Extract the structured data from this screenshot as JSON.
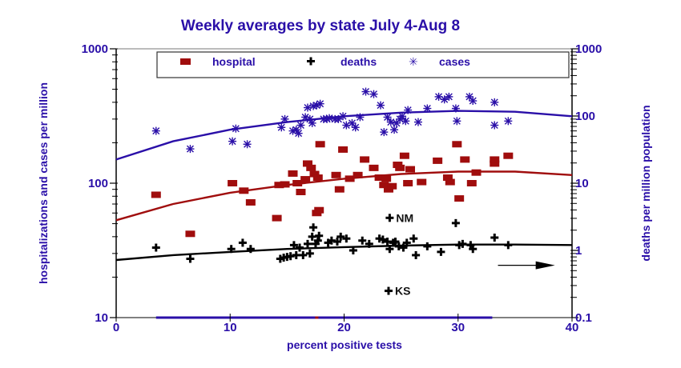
{
  "chart_data": {
    "type": "scatter",
    "title": "Weekly averages by state July 4-Aug 8",
    "xlabel": "percent positive tests",
    "ylabel_left": "hospitalizations and cases per million",
    "ylabel_right": "deaths per million population",
    "xlim": [
      0,
      40
    ],
    "ylim_left": [
      10,
      1000
    ],
    "ylim_right": [
      0.1,
      1000
    ],
    "yscale": "log",
    "x_ticks": [
      "0",
      "10",
      "20",
      "30",
      "40"
    ],
    "y_ticks_left": [
      "10",
      "100",
      "1000"
    ],
    "y_ticks_right": [
      "0.1",
      "1",
      "10",
      "100",
      "1000"
    ],
    "legend": {
      "position": "top-center",
      "entries": [
        {
          "name": "hospital",
          "marker": "square",
          "color": "#a00d0d"
        },
        {
          "name": "deaths",
          "marker": "plus",
          "color": "#000000"
        },
        {
          "name": "cases",
          "marker": "asterisk",
          "color": "#2a0fa8"
        }
      ]
    },
    "series": [
      {
        "name": "cases",
        "axis": "left",
        "color": "#2a0fa8",
        "points": [
          [
            3.5,
            245
          ],
          [
            6.5,
            180
          ],
          [
            10.2,
            205
          ],
          [
            11.5,
            195
          ],
          [
            10.5,
            255
          ],
          [
            14.5,
            260
          ],
          [
            14.8,
            300
          ],
          [
            15.5,
            245
          ],
          [
            15.8,
            250
          ],
          [
            16.2,
            270
          ],
          [
            16.6,
            310
          ],
          [
            16.8,
            365
          ],
          [
            17,
            300
          ],
          [
            17.3,
            375
          ],
          [
            17.6,
            380
          ],
          [
            17.9,
            390
          ],
          [
            17.2,
            280
          ],
          [
            18.2,
            300
          ],
          [
            18.7,
            305
          ],
          [
            19.2,
            300
          ],
          [
            19.5,
            300
          ],
          [
            19.9,
            315
          ],
          [
            20.2,
            270
          ],
          [
            20.7,
            280
          ],
          [
            21,
            260
          ],
          [
            21.4,
            310
          ],
          [
            21.9,
            480
          ],
          [
            22.6,
            460
          ],
          [
            23.2,
            380
          ],
          [
            23.8,
            310
          ],
          [
            24.1,
            285
          ],
          [
            24.4,
            250
          ],
          [
            24.6,
            280
          ],
          [
            24.9,
            300
          ],
          [
            25.1,
            315
          ],
          [
            25.4,
            290
          ],
          [
            25.6,
            350
          ],
          [
            26.5,
            285
          ],
          [
            27.3,
            360
          ],
          [
            28.3,
            440
          ],
          [
            28.8,
            420
          ],
          [
            29.2,
            440
          ],
          [
            29.8,
            360
          ],
          [
            29.9,
            290
          ],
          [
            31,
            440
          ],
          [
            31.3,
            410
          ],
          [
            33.2,
            270
          ],
          [
            33.2,
            400
          ],
          [
            34.4,
            290
          ],
          [
            18.5,
            300
          ],
          [
            16,
            235
          ],
          [
            23.5,
            240
          ]
        ]
      },
      {
        "name": "hospital",
        "axis": "left",
        "color": "#a00d0d",
        "points": [
          [
            3.5,
            82
          ],
          [
            6.5,
            42
          ],
          [
            10.2,
            100
          ],
          [
            11.2,
            88
          ],
          [
            11.8,
            72
          ],
          [
            14.1,
            55
          ],
          [
            14.3,
            97
          ],
          [
            14.8,
            98
          ],
          [
            15.5,
            118
          ],
          [
            15.9,
            100
          ],
          [
            16.2,
            86
          ],
          [
            16.6,
            107
          ],
          [
            16.8,
            140
          ],
          [
            17.1,
            130
          ],
          [
            17.4,
            117
          ],
          [
            17.7,
            110
          ],
          [
            17.6,
            60
          ],
          [
            17.9,
            195
          ],
          [
            17.8,
            63
          ],
          [
            19.3,
            115
          ],
          [
            19.6,
            90
          ],
          [
            19.9,
            178
          ],
          [
            20.5,
            108
          ],
          [
            21.2,
            115
          ],
          [
            21.8,
            150
          ],
          [
            22.6,
            130
          ],
          [
            23.1,
            110
          ],
          [
            23.5,
            97
          ],
          [
            23.7,
            108
          ],
          [
            23.9,
            90
          ],
          [
            24.2,
            95
          ],
          [
            24.7,
            137
          ],
          [
            24.9,
            130
          ],
          [
            25.3,
            160
          ],
          [
            25.6,
            100
          ],
          [
            25.8,
            127
          ],
          [
            26.8,
            102
          ],
          [
            28.2,
            147
          ],
          [
            29.1,
            110
          ],
          [
            29.3,
            102
          ],
          [
            29.9,
            195
          ],
          [
            30.1,
            77
          ],
          [
            30.6,
            150
          ],
          [
            31.2,
            100
          ],
          [
            31.6,
            120
          ],
          [
            33.2,
            140
          ],
          [
            33.2,
            150
          ],
          [
            34.4,
            160
          ]
        ]
      },
      {
        "name": "deaths",
        "axis": "right",
        "color": "#000000",
        "points": [
          [
            3.5,
            1.1
          ],
          [
            6.5,
            0.75
          ],
          [
            10.1,
            1.05
          ],
          [
            11.1,
            1.3
          ],
          [
            11.8,
            1.05
          ],
          [
            14.4,
            0.75
          ],
          [
            14.7,
            0.78
          ],
          [
            15,
            0.8
          ],
          [
            15.3,
            0.82
          ],
          [
            15.6,
            1.2
          ],
          [
            15.8,
            0.85
          ],
          [
            16.1,
            1.1
          ],
          [
            16.4,
            0.85
          ],
          [
            16.8,
            1.25
          ],
          [
            17,
            0.9
          ],
          [
            17.2,
            1.6
          ],
          [
            17.3,
            2.2
          ],
          [
            17.5,
            1.25
          ],
          [
            17.7,
            1.4
          ],
          [
            17.8,
            1.65
          ],
          [
            18.6,
            1.3
          ],
          [
            18.9,
            1.4
          ],
          [
            19.4,
            1.35
          ],
          [
            19.7,
            1.6
          ],
          [
            20.2,
            1.5
          ],
          [
            20.8,
            1
          ],
          [
            21.6,
            1.4
          ],
          [
            22.2,
            1.25
          ],
          [
            23.1,
            1.5
          ],
          [
            23.4,
            1.45
          ],
          [
            23.8,
            1.35
          ],
          [
            24,
            1.05
          ],
          [
            24.3,
            1.3
          ],
          [
            24.5,
            1.35
          ],
          [
            24.8,
            1.15
          ],
          [
            25.2,
            1.1
          ],
          [
            25.5,
            1.3
          ],
          [
            26.1,
            1.5
          ],
          [
            26.3,
            0.85
          ],
          [
            27.3,
            1.15
          ],
          [
            28.5,
            0.95
          ],
          [
            29.8,
            2.55
          ],
          [
            30.1,
            1.2
          ],
          [
            30.4,
            1.25
          ],
          [
            31.1,
            1.2
          ],
          [
            31.3,
            1.05
          ],
          [
            33.2,
            1.55
          ],
          [
            34.4,
            1.2
          ],
          [
            24,
            3.05
          ],
          [
            23.9,
            0.25
          ]
        ]
      }
    ],
    "trend_lines": [
      {
        "series": "cases",
        "axis": "left",
        "color": "#2a0fa8",
        "x": [
          0,
          5,
          10,
          15,
          20,
          25,
          30,
          35,
          40
        ],
        "y": [
          150,
          205,
          250,
          285,
          315,
          335,
          345,
          340,
          315
        ]
      },
      {
        "series": "hospital",
        "axis": "left",
        "color": "#a00d0d",
        "x": [
          0,
          5,
          10,
          15,
          20,
          25,
          30,
          35,
          40
        ],
        "y": [
          53,
          70,
          85,
          97,
          108,
          117,
          122,
          122,
          115
        ]
      },
      {
        "series": "deaths",
        "axis": "right",
        "color": "#000000",
        "x": [
          0,
          5,
          10,
          15,
          20,
          25,
          30,
          35,
          40
        ],
        "y": [
          0.72,
          0.85,
          0.95,
          1.05,
          1.12,
          1.18,
          1.22,
          1.22,
          1.2
        ]
      }
    ],
    "annotations": [
      {
        "text": "NM",
        "x": 24,
        "y_right": 3.05
      },
      {
        "text": "KS",
        "x": 23.9,
        "y_right": 0.25
      },
      {
        "text": "arrow",
        "x_from": 33.5,
        "x_to": 38.5,
        "y_right": 0.6
      }
    ],
    "x_range_bar": {
      "from": 3.5,
      "to": 33,
      "marker": 17.6,
      "color": "#2a0fa8",
      "marker_color": "#a00d0d"
    }
  }
}
